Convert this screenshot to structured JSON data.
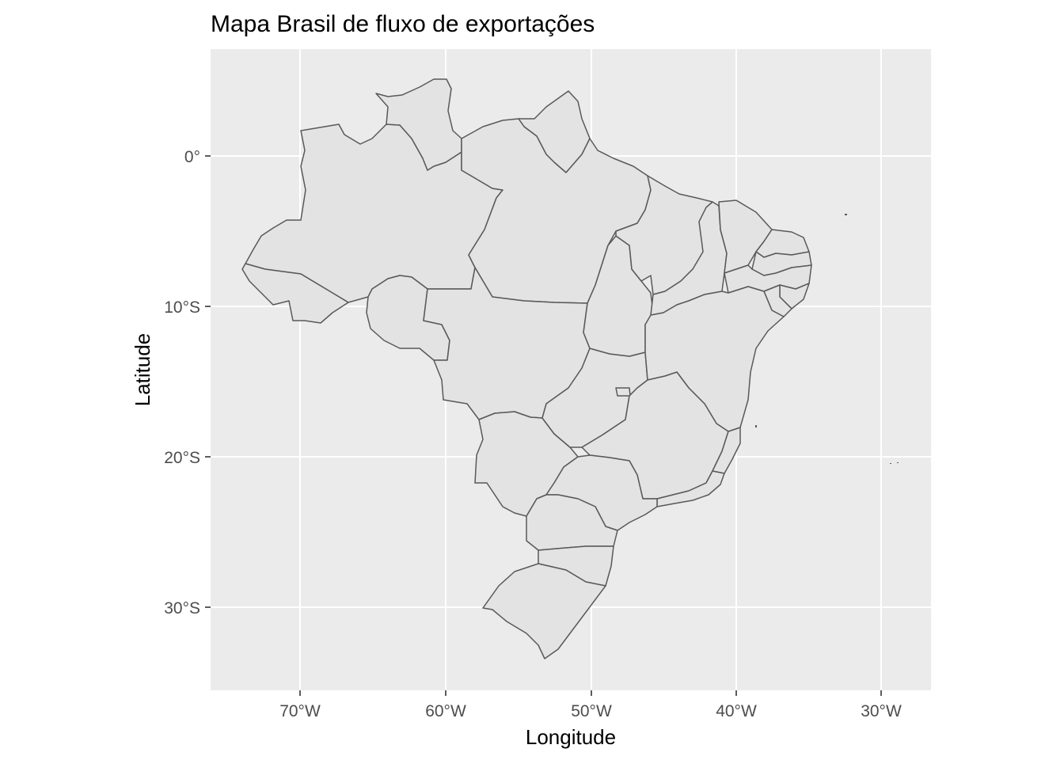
{
  "chart_data": {
    "type": "map",
    "title": "Mapa Brasil de fluxo de exportações",
    "xlabel": "Longitude",
    "ylabel": "Latitude",
    "xlim": [
      -76,
      -27
    ],
    "ylim": [
      -36,
      7
    ],
    "grid": true,
    "x_ticks": [
      {
        "value": -70,
        "label": "70°W"
      },
      {
        "value": -60,
        "label": "60°W"
      },
      {
        "value": -50,
        "label": "50°W"
      },
      {
        "value": -40,
        "label": "40°W"
      },
      {
        "value": -30,
        "label": "30°W"
      }
    ],
    "y_ticks": [
      {
        "value": 0,
        "label": "0°"
      },
      {
        "value": -10,
        "label": "10°S"
      },
      {
        "value": -20,
        "label": "20°S"
      },
      {
        "value": -30,
        "label": "30°S"
      }
    ],
    "colors": {
      "panel": "#ebebeb",
      "state_fill": "#e3e3e3",
      "state_border": "#595959",
      "grid": "#ffffff",
      "tick_text": "#4d4d4d"
    }
  }
}
